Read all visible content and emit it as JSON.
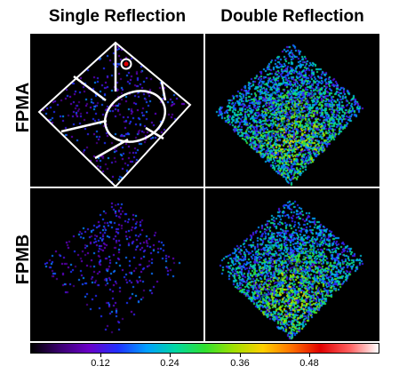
{
  "columns": {
    "single": "Single Reflection",
    "double": "Double Reflection"
  },
  "rows": {
    "fpma": "FPMA",
    "fpmb": "FPMB"
  },
  "colorbar": {
    "ticks": [
      "0.12",
      "0.24",
      "0.36",
      "0.48"
    ],
    "tick_values": [
      0.12,
      0.24,
      0.36,
      0.48
    ],
    "min": 0,
    "max": 0.6,
    "colormap": [
      "#000000",
      "#3a0070",
      "#6a00c8",
      "#2030ff",
      "#00a0ff",
      "#00d8a0",
      "#30e030",
      "#a0e000",
      "#ffd000",
      "#ff7000",
      "#e00000",
      "#ff6060",
      "#ffffff"
    ]
  },
  "panels": [
    {
      "id": "fpma-single",
      "density": 0.08,
      "concentration": "uniform",
      "seed": 11,
      "overlay": true
    },
    {
      "id": "fpma-double",
      "density": 0.55,
      "concentration": "bottom",
      "seed": 23,
      "overlay": false
    },
    {
      "id": "fpmb-single",
      "density": 0.07,
      "concentration": "top",
      "seed": 37,
      "overlay": false
    },
    {
      "id": "fpmb-double",
      "density": 0.5,
      "concentration": "bottom",
      "seed": 41,
      "overlay": false
    }
  ]
}
